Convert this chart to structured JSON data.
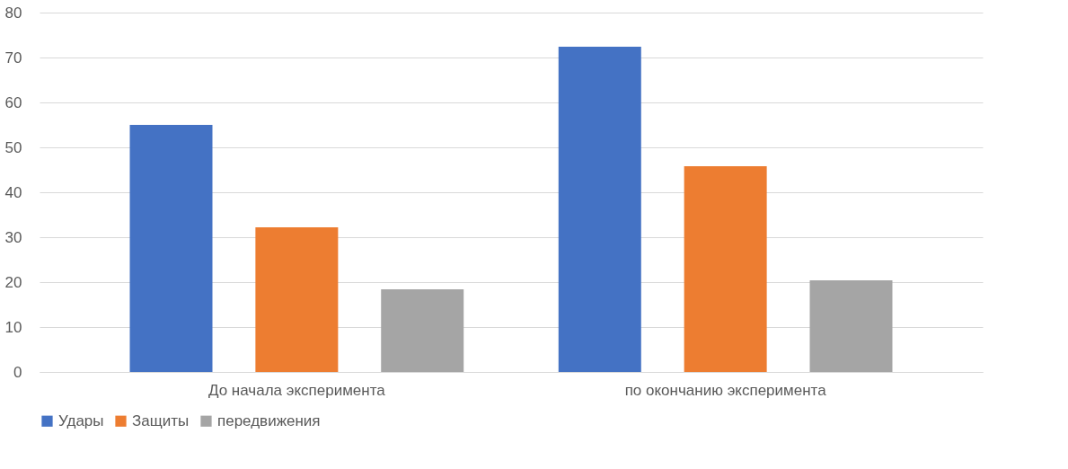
{
  "chart_data": {
    "type": "bar",
    "categories": [
      "До начала эксперимента",
      "по окончанию эксперимента"
    ],
    "series": [
      {
        "name": "Удары",
        "color": "#4472c4",
        "values": [
          55,
          72.4
        ]
      },
      {
        "name": "Защиты",
        "color": "#ed7d31",
        "values": [
          32.2,
          45.8
        ]
      },
      {
        "name": "передвижения",
        "color": "#a5a5a5",
        "values": [
          18.4,
          20.4
        ]
      }
    ],
    "ylim": [
      0,
      80
    ],
    "yticks": [
      0,
      10,
      20,
      30,
      40,
      50,
      60,
      70,
      80
    ],
    "grid": "y",
    "legend": "bottom"
  }
}
